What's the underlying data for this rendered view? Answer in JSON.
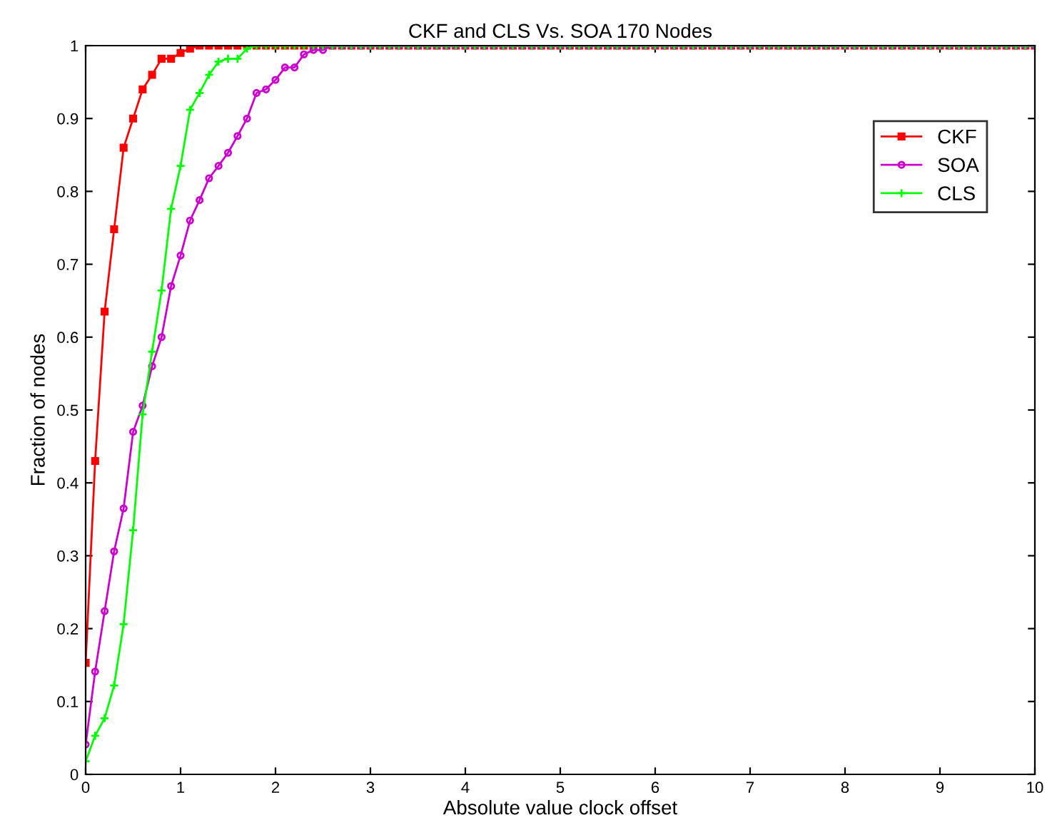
{
  "chart_data": {
    "type": "line",
    "title": "CKF and CLS Vs. SOA 170 Nodes",
    "xlabel": "Absolute value clock offset",
    "ylabel": "Fraction of nodes",
    "x": [
      0,
      0.1,
      0.2,
      0.3,
      0.4,
      0.5,
      0.6,
      0.7,
      0.8,
      0.9,
      1,
      1.1,
      1.2,
      1.3,
      1.4,
      1.5,
      1.6,
      1.7,
      1.8,
      1.9,
      2,
      2.1,
      2.2,
      2.3,
      2.4,
      2.5,
      2.6,
      2.7,
      2.8,
      2.9,
      3,
      3.1,
      3.2,
      3.3,
      3.4,
      3.5,
      3.6,
      3.7,
      3.8,
      3.9,
      4,
      4.1,
      4.2,
      4.3,
      4.4,
      4.5,
      4.6,
      4.7,
      4.8,
      4.9,
      5,
      5.1,
      5.2,
      5.3,
      5.4,
      5.5,
      5.6,
      5.7,
      5.8,
      5.9,
      6,
      6.1,
      6.2,
      6.3,
      6.4,
      6.5,
      6.6,
      6.7,
      6.8,
      6.9,
      7,
      7.1,
      7.2,
      7.3,
      7.4,
      7.5,
      7.6,
      7.7,
      7.8,
      7.9,
      8,
      8.1,
      8.2,
      8.3,
      8.4,
      8.5,
      8.6,
      8.7,
      8.8,
      8.9,
      9,
      9.1,
      9.2,
      9.3,
      9.4,
      9.5,
      9.6,
      9.7,
      9.8,
      9.9,
      10
    ],
    "series": [
      {
        "name": "CKF",
        "color": "#ff0000",
        "marker": "square",
        "values": [
          0.153,
          0.43,
          0.635,
          0.748,
          0.86,
          0.9,
          0.94,
          0.96,
          0.982,
          0.982,
          0.99,
          0.996,
          1,
          1,
          1,
          1,
          1,
          1,
          1,
          1,
          1,
          1,
          1,
          1,
          1,
          1,
          1,
          1,
          1,
          1,
          1,
          1,
          1,
          1,
          1,
          1,
          1,
          1,
          1,
          1,
          1,
          1,
          1,
          1,
          1,
          1,
          1,
          1,
          1,
          1,
          1,
          1,
          1,
          1,
          1,
          1,
          1,
          1,
          1,
          1,
          1,
          1,
          1,
          1,
          1,
          1,
          1,
          1,
          1,
          1,
          1,
          1,
          1,
          1,
          1,
          1,
          1,
          1,
          1,
          1,
          1,
          1,
          1,
          1,
          1,
          1,
          1,
          1,
          1,
          1,
          1,
          1,
          1,
          1,
          1,
          1,
          1,
          1,
          1,
          1,
          1
        ]
      },
      {
        "name": "SOA",
        "color": "#cc00cc",
        "marker": "circle",
        "values": [
          0.041,
          0.141,
          0.224,
          0.306,
          0.365,
          0.47,
          0.506,
          0.56,
          0.6,
          0.67,
          0.712,
          0.76,
          0.788,
          0.818,
          0.835,
          0.853,
          0.876,
          0.9,
          0.935,
          0.94,
          0.953,
          0.97,
          0.97,
          0.988,
          0.994,
          0.994,
          1,
          1,
          1,
          1,
          1,
          1,
          1,
          1,
          1,
          1,
          1,
          1,
          1,
          1,
          1,
          1,
          1,
          1,
          1,
          1,
          1,
          1,
          1,
          1,
          1,
          1,
          1,
          1,
          1,
          1,
          1,
          1,
          1,
          1,
          1,
          1,
          1,
          1,
          1,
          1,
          1,
          1,
          1,
          1,
          1,
          1,
          1,
          1,
          1,
          1,
          1,
          1,
          1,
          1,
          1,
          1,
          1,
          1,
          1,
          1,
          1,
          1,
          1,
          1,
          1,
          1,
          1,
          1,
          1,
          1,
          1,
          1,
          1,
          1,
          1
        ]
      },
      {
        "name": "CLS",
        "color": "#00ff00",
        "marker": "cross",
        "values": [
          0.018,
          0.053,
          0.077,
          0.122,
          0.206,
          0.335,
          0.494,
          0.58,
          0.664,
          0.776,
          0.835,
          0.912,
          0.935,
          0.96,
          0.978,
          0.982,
          0.982,
          0.996,
          1,
          1,
          1,
          1,
          1,
          1,
          1,
          1,
          1,
          1,
          1,
          1,
          1,
          1,
          1,
          1,
          1,
          1,
          1,
          1,
          1,
          1,
          1,
          1,
          1,
          1,
          1,
          1,
          1,
          1,
          1,
          1,
          1,
          1,
          1,
          1,
          1,
          1,
          1,
          1,
          1,
          1,
          1,
          1,
          1,
          1,
          1,
          1,
          1,
          1,
          1,
          1,
          1,
          1,
          1,
          1,
          1,
          1,
          1,
          1,
          1,
          1,
          1,
          1,
          1,
          1,
          1,
          1,
          1,
          1,
          1,
          1,
          1,
          1,
          1,
          1,
          1,
          1,
          1,
          1,
          1,
          1,
          1
        ]
      }
    ],
    "xlim": [
      0,
      10
    ],
    "ylim": [
      0,
      1
    ],
    "xticks": [
      0,
      1,
      2,
      3,
      4,
      5,
      6,
      7,
      8,
      9,
      10
    ],
    "yticks": [
      0,
      0.1,
      0.2,
      0.3,
      0.4,
      0.5,
      0.6,
      0.7,
      0.8,
      0.9,
      1
    ],
    "grid": false,
    "legend": "top right",
    "line_style": "solid"
  }
}
